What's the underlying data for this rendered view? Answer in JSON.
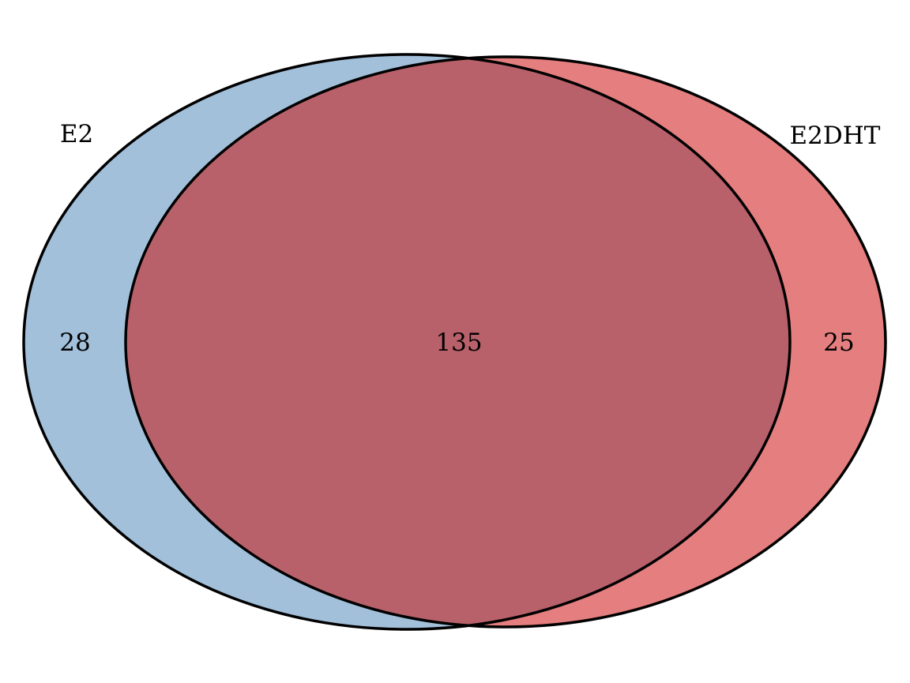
{
  "sets": [
    {
      "key": "a",
      "label": "E2",
      "color": "#a3c0db"
    },
    {
      "key": "b",
      "label": "E2DHT",
      "color": "#e57e7f"
    }
  ],
  "intersection_color": "#b9616b",
  "outline_color": "#000000",
  "counts": {
    "only_a": "28",
    "both": "135",
    "only_b": "25"
  }
}
